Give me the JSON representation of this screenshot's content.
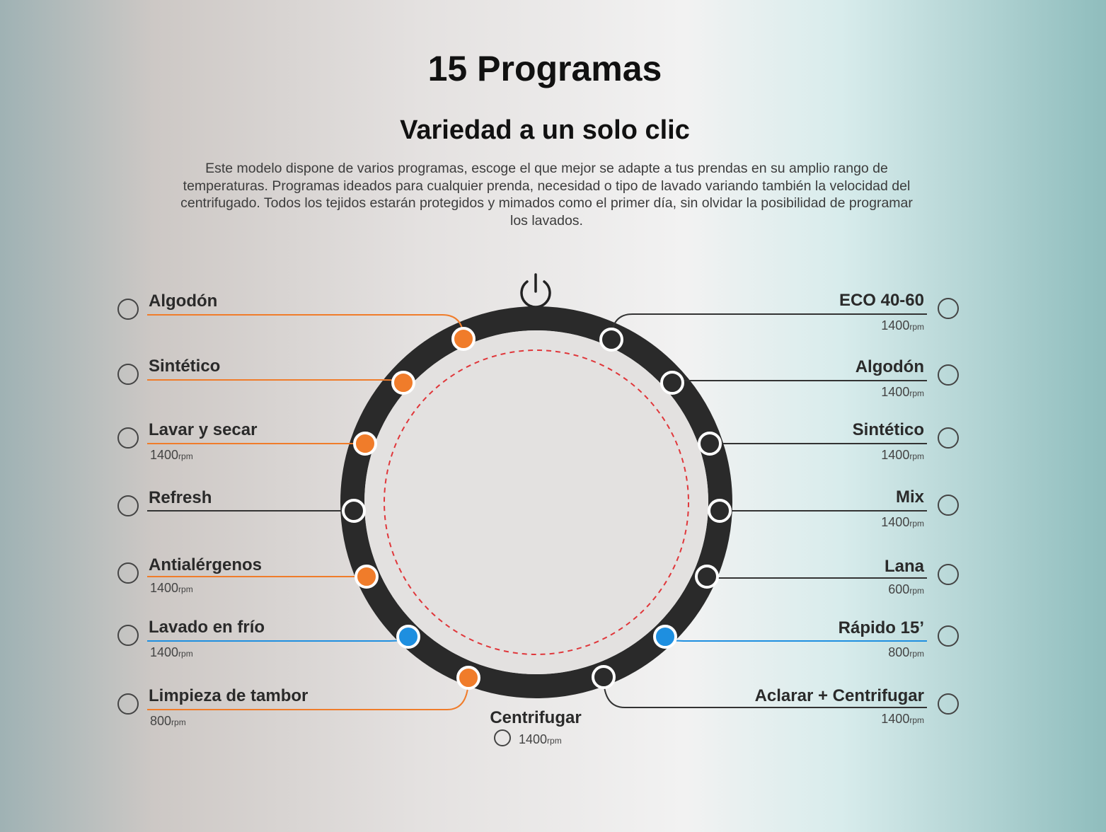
{
  "header": {
    "title": "15 Programas",
    "subtitle": "Variedad a un solo clic",
    "description": "Este modelo dispone de varios programas, escoge el que mejor se adapte a tus prendas en su amplio rango de temperaturas. Programas ideados para cualquier prenda, necesidad o tipo de lavado variando también la velocidad del centrifugado. Todos los tejidos estarán protegidos y mimados como el primer día, sin olvidar la posibilidad de programar los lavados."
  },
  "left_programs": [
    {
      "name": "Algodón",
      "color": "#f07c2a"
    },
    {
      "name": "Sintético",
      "color": "#f07c2a"
    },
    {
      "name": "Lavar y secar",
      "speed": "1400",
      "unit": "rpm",
      "color": "#f07c2a"
    },
    {
      "name": "Refresh",
      "color": "#2b2b2b"
    },
    {
      "name": "Antialérgenos",
      "speed": "1400",
      "unit": "rpm",
      "color": "#f07c2a"
    },
    {
      "name": "Lavado en frío",
      "speed": "1400",
      "unit": "rpm",
      "color": "#1e8fe0"
    },
    {
      "name": "Limpieza de tambor",
      "speed": "800",
      "unit": "rpm",
      "color": "#f07c2a"
    }
  ],
  "right_programs": [
    {
      "name": "ECO 40-60",
      "speed": "1400",
      "unit": "rpm",
      "color": "#2b2b2b"
    },
    {
      "name": "Algodón",
      "speed": "1400",
      "unit": "rpm",
      "color": "#2b2b2b"
    },
    {
      "name": "Sintético",
      "speed": "1400",
      "unit": "rpm",
      "color": "#2b2b2b"
    },
    {
      "name": "Mix",
      "speed": "1400",
      "unit": "rpm",
      "color": "#2b2b2b"
    },
    {
      "name": "Lana",
      "speed": "600",
      "unit": "rpm",
      "color": "#2b2b2b"
    },
    {
      "name": "Rápido 15’",
      "speed": "800",
      "unit": "rpm",
      "color": "#1e8fe0"
    },
    {
      "name": "Aclarar + Centrifugar",
      "speed": "1400",
      "unit": "rpm",
      "color": "#2b2b2b"
    }
  ],
  "bottom_program": {
    "name": "Centrifugar",
    "speed": "1400",
    "unit": "rpm"
  }
}
